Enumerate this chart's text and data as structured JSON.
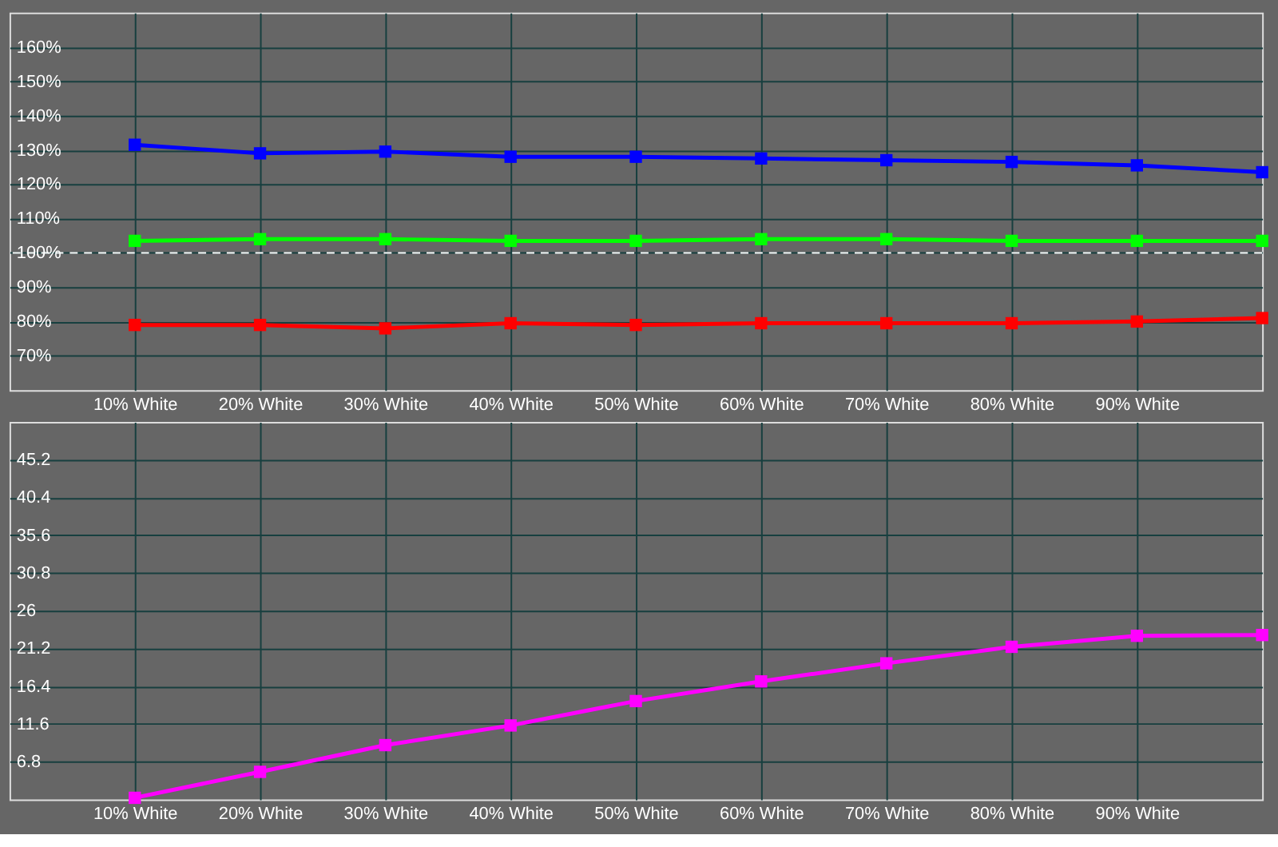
{
  "chart_data": [
    {
      "type": "line",
      "x": [
        10,
        20,
        30,
        40,
        50,
        60,
        70,
        80,
        90,
        100
      ],
      "series": [
        {
          "color": "#0000ff",
          "values": [
            131.5,
            129,
            129.5,
            128,
            128,
            127.5,
            127,
            126.5,
            125.5,
            123.5
          ]
        },
        {
          "color": "#00ff00",
          "values": [
            103.5,
            104,
            104,
            103.5,
            103.5,
            104,
            104,
            103.5,
            103.5,
            103.5
          ]
        },
        {
          "color": "#ff0000",
          "values": [
            79,
            79,
            78,
            79.5,
            79,
            79.5,
            79.5,
            79.5,
            80,
            81
          ]
        }
      ],
      "xlim": [
        0,
        100
      ],
      "xticks": [
        {
          "value": 10,
          "label": "10% White"
        },
        {
          "value": 20,
          "label": "20% White"
        },
        {
          "value": 30,
          "label": "30% White"
        },
        {
          "value": 40,
          "label": "40% White"
        },
        {
          "value": 50,
          "label": "50% White"
        },
        {
          "value": 60,
          "label": "60% White"
        },
        {
          "value": 70,
          "label": "70% White"
        },
        {
          "value": 80,
          "label": "80% White"
        },
        {
          "value": 90,
          "label": "90% White"
        }
      ],
      "ylim": [
        60,
        170
      ],
      "yticks": [
        {
          "value": 70,
          "label": "70%"
        },
        {
          "value": 80,
          "label": "80%"
        },
        {
          "value": 90,
          "label": "90%"
        },
        {
          "value": 100,
          "label": "100%"
        },
        {
          "value": 110,
          "label": "110%"
        },
        {
          "value": 120,
          "label": "120%"
        },
        {
          "value": 130,
          "label": "130%"
        },
        {
          "value": 140,
          "label": "140%"
        },
        {
          "value": 150,
          "label": "150%"
        },
        {
          "value": 160,
          "label": "160%"
        }
      ],
      "ref_lines": [
        {
          "axis": "y",
          "value": 100,
          "color": "#ffffff",
          "line_style": "dashed"
        }
      ],
      "grid": true,
      "marker": "square",
      "line_style": "solid"
    },
    {
      "type": "line",
      "x": [
        10,
        20,
        30,
        40,
        50,
        60,
        70,
        80,
        90,
        100
      ],
      "series": [
        {
          "color": "#ff00ff",
          "values": [
            2.2,
            5.5,
            8.9,
            11.4,
            14.5,
            17.0,
            19.3,
            21.4,
            22.8,
            22.9
          ]
        }
      ],
      "xlim": [
        0,
        100
      ],
      "xticks": [
        {
          "value": 10,
          "label": "10% White"
        },
        {
          "value": 20,
          "label": "20% White"
        },
        {
          "value": 30,
          "label": "30% White"
        },
        {
          "value": 40,
          "label": "40% White"
        },
        {
          "value": 50,
          "label": "50% White"
        },
        {
          "value": 60,
          "label": "60% White"
        },
        {
          "value": 70,
          "label": "70% White"
        },
        {
          "value": 80,
          "label": "80% White"
        },
        {
          "value": 90,
          "label": "90% White"
        }
      ],
      "ylim": [
        2,
        50
      ],
      "yticks": [
        6.8,
        11.6,
        16.4,
        21.2,
        26,
        30.8,
        35.6,
        40.4,
        45.2
      ],
      "grid": true,
      "marker": "square",
      "line_style": "solid"
    }
  ]
}
